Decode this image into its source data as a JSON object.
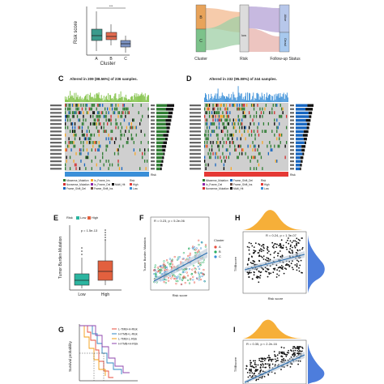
{
  "panels": {
    "a": {
      "ylabel": "Risk score",
      "xlabel": "Cluster",
      "categories": [
        "A",
        "B",
        "C"
      ],
      "sig": "***",
      "colors": [
        "#3a9a8c",
        "#e26a4f",
        "#7c93c4"
      ]
    },
    "b": {
      "axes": [
        "Cluster",
        "Risk",
        "Follow-up Status"
      ],
      "nodes_cluster": [
        "B",
        "C"
      ],
      "nodes_risk": [
        "low"
      ],
      "nodes_status": [
        "Alive",
        "Dead"
      ]
    },
    "c": {
      "label": "C",
      "title": "Altered in 209 (88.56%) of 236 samples.",
      "legend": [
        "Missense_Mutation",
        "Nonsense_Mutation",
        "Frame_Shift_Del",
        "In_Frame_Ins",
        "In_Frame_Del",
        "Frame_Shift_Ins",
        "Multi_Hit"
      ],
      "risk_legend": [
        "Risk",
        "High",
        "Low"
      ],
      "bar_label": "Risk"
    },
    "d": {
      "label": "D",
      "title": "Altered in 232 (95.08%) of 244 samples.",
      "legend": [
        "Missense_Mutation",
        "In_Frame_Del",
        "Nonsense_Mutation",
        "Frame_Shift_Del",
        "Frame_Shift_Ins",
        "Multi_Hit"
      ],
      "risk_legend": [
        "Risk",
        "High",
        "Low"
      ],
      "bar_label": "Risk"
    },
    "e": {
      "label": "E",
      "legend_title": "Risk",
      "legend": [
        "Low",
        "High"
      ],
      "pval": "p = 1.5e-13",
      "ylabel": "Tumor Burden Mutation",
      "categories": [
        "Low",
        "High"
      ],
      "colors": [
        "#2bb5a0",
        "#e2603e"
      ]
    },
    "f": {
      "label": "F",
      "stat": "R = 0.23, p = 5.2e-06",
      "ylabel": "Tumor Burden Mutation",
      "xlabel": "Risk score",
      "legend_title": "Cluster",
      "legend": [
        "A",
        "B",
        "C"
      ]
    },
    "g": {
      "label": "G",
      "legend": [
        "L-TMB+H-Risk",
        "H-TMB+L-Risk",
        "L-TMB+L-Risk",
        "H-TMB+H-Risk"
      ],
      "ylabel": "Survival probability",
      "colors": [
        "#e74c3c",
        "#2e86c1",
        "#f39c12",
        "#8e44ad"
      ]
    },
    "h": {
      "label": "H",
      "stat": "R = 0.24, p = 1.3e-07",
      "ylabel": "TMBscore",
      "xlabel": "Risk score"
    },
    "i": {
      "label": "I",
      "stat": "R = 0.35, p < 2.2e-16",
      "ylabel": "TMBscore"
    }
  }
}
